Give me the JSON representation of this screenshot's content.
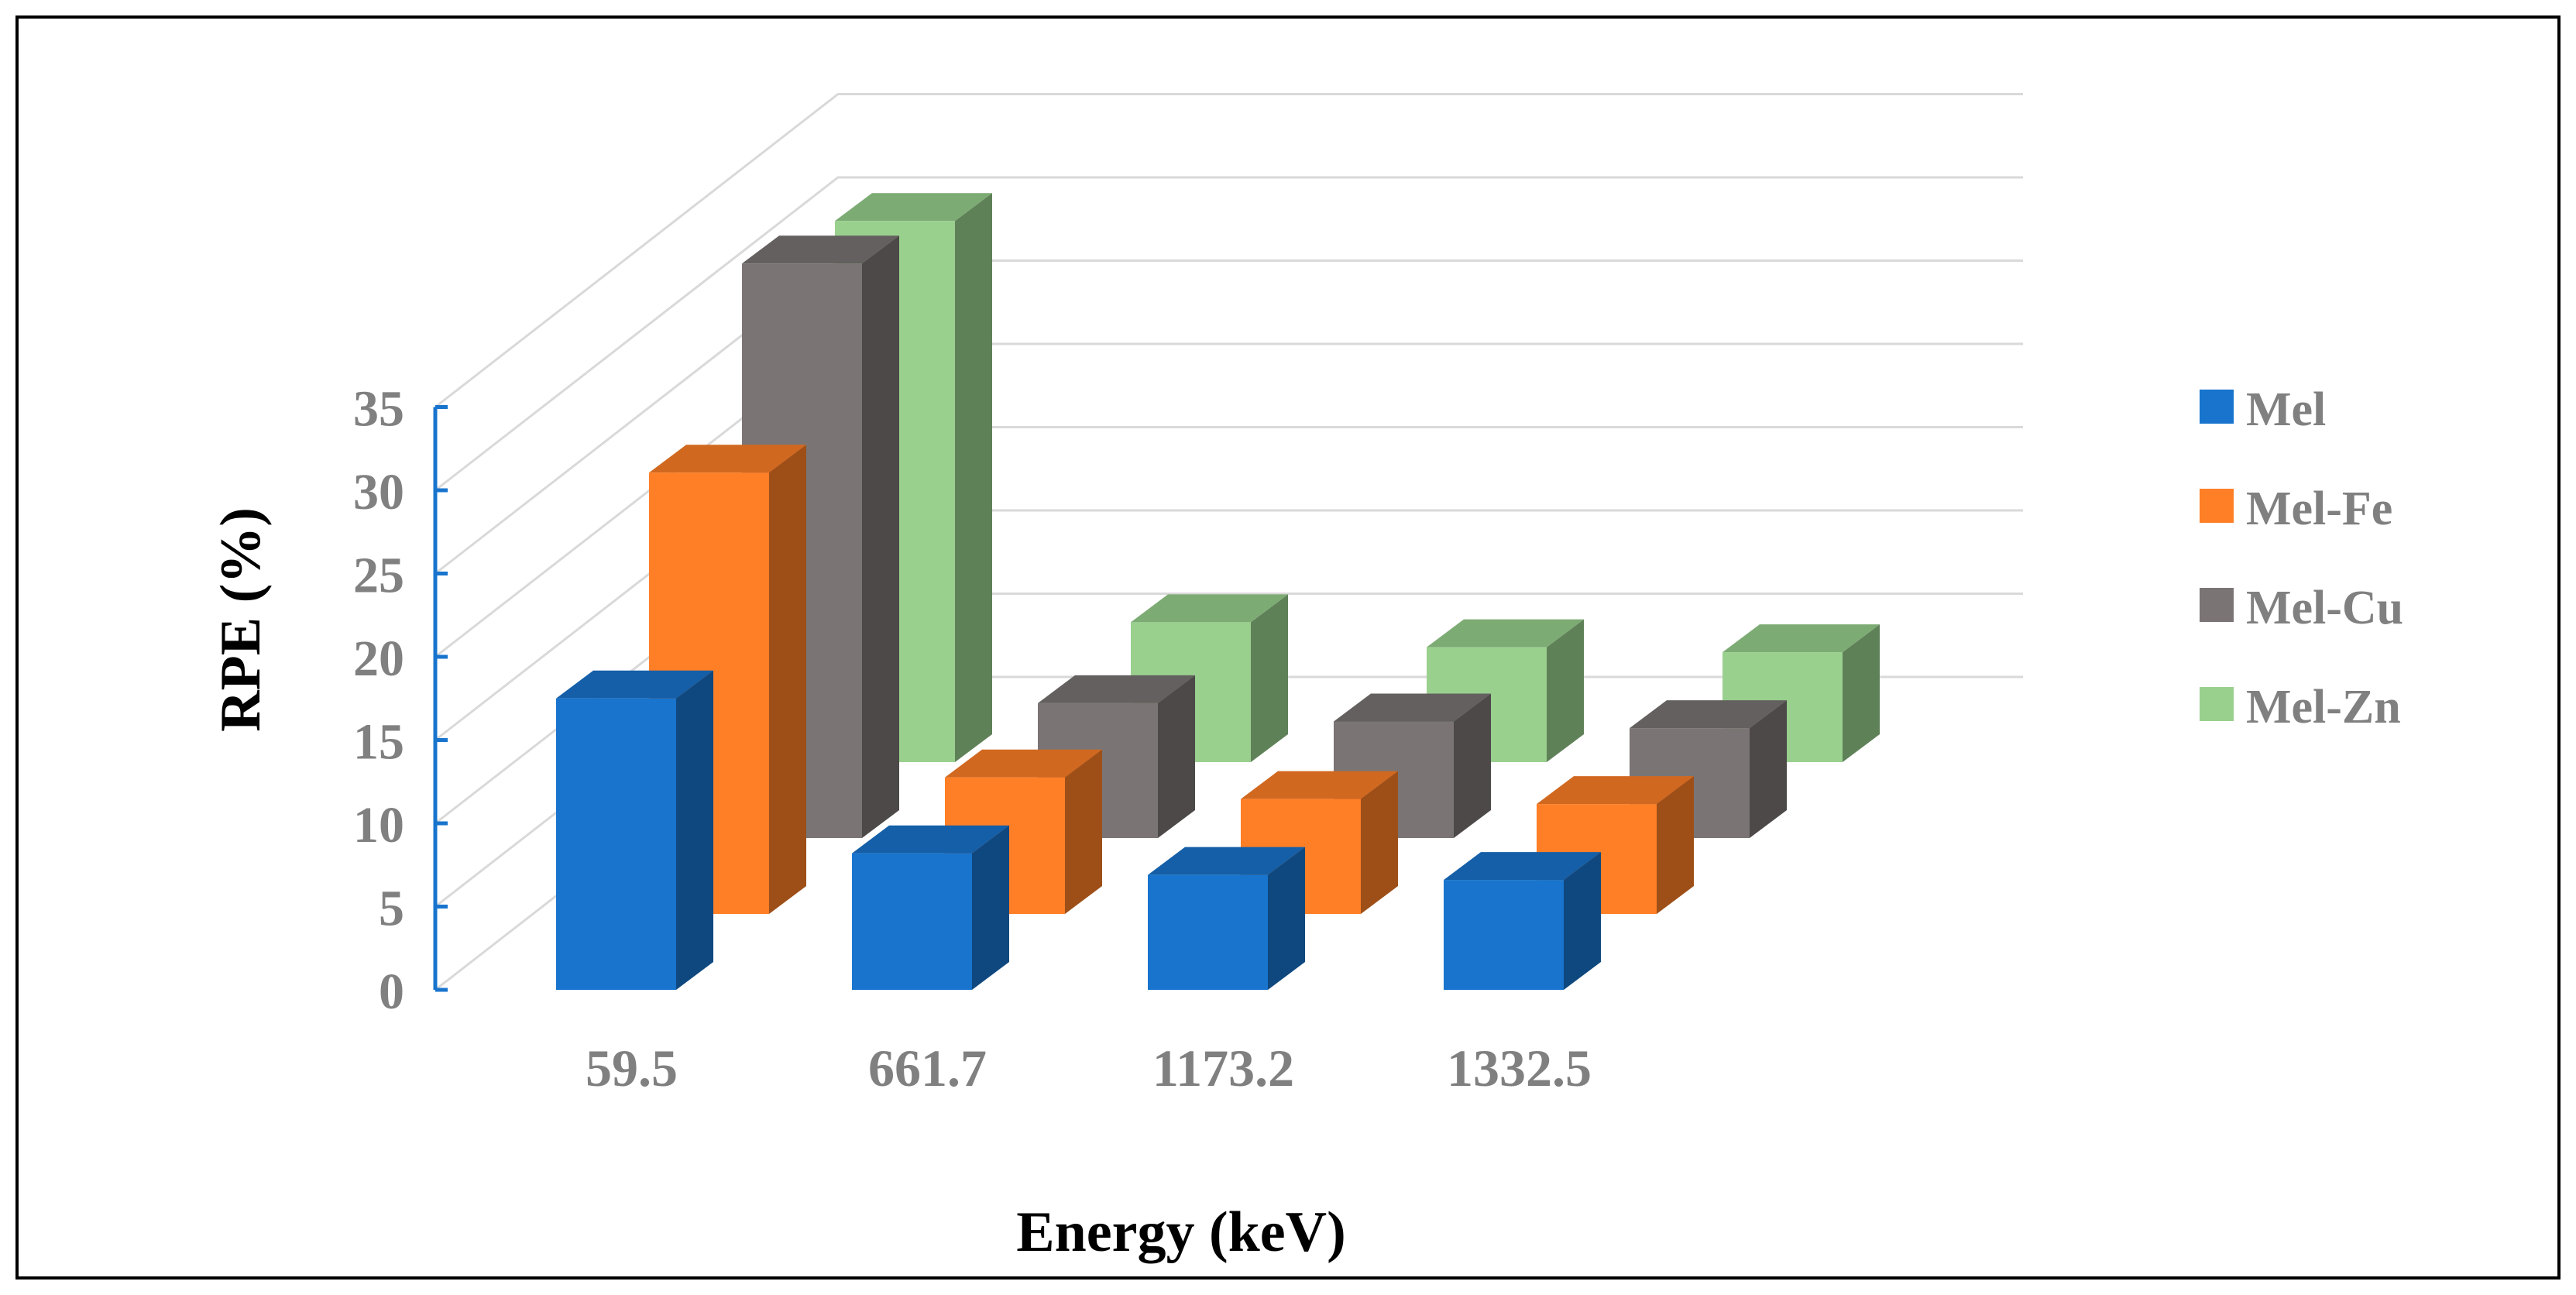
{
  "chart_data": {
    "type": "bar",
    "style": "3d-column",
    "categories": [
      "59.5",
      "661.7",
      "1173.2",
      "1332.5"
    ],
    "series": [
      {
        "name": "Mel",
        "values": [
          17.5,
          8.2,
          6.9,
          6.6
        ]
      },
      {
        "name": "Mel-Fe",
        "values": [
          26.5,
          8.2,
          6.9,
          6.6
        ]
      },
      {
        "name": "Mel-Cu",
        "values": [
          34.5,
          8.1,
          7.0,
          6.6
        ]
      },
      {
        "name": "Mel-Zn",
        "values": [
          32.5,
          8.4,
          6.9,
          6.6
        ]
      }
    ],
    "xlabel": "Energy (keV)",
    "ylabel": "RPE (%)",
    "ylim": [
      0,
      35
    ],
    "yticks": [
      "0",
      "5",
      "10",
      "15",
      "20",
      "25",
      "30",
      "35"
    ],
    "grid": true,
    "legend_position": "right"
  },
  "colors": {
    "Mel": "#1874CD",
    "Mel-Fe": "#FF7F27",
    "Mel-Cu": "#7A7574",
    "Mel-Zn": "#99D08E",
    "axis": "#1874CD",
    "grid": "#D9D9D9",
    "frame": "#000000"
  }
}
